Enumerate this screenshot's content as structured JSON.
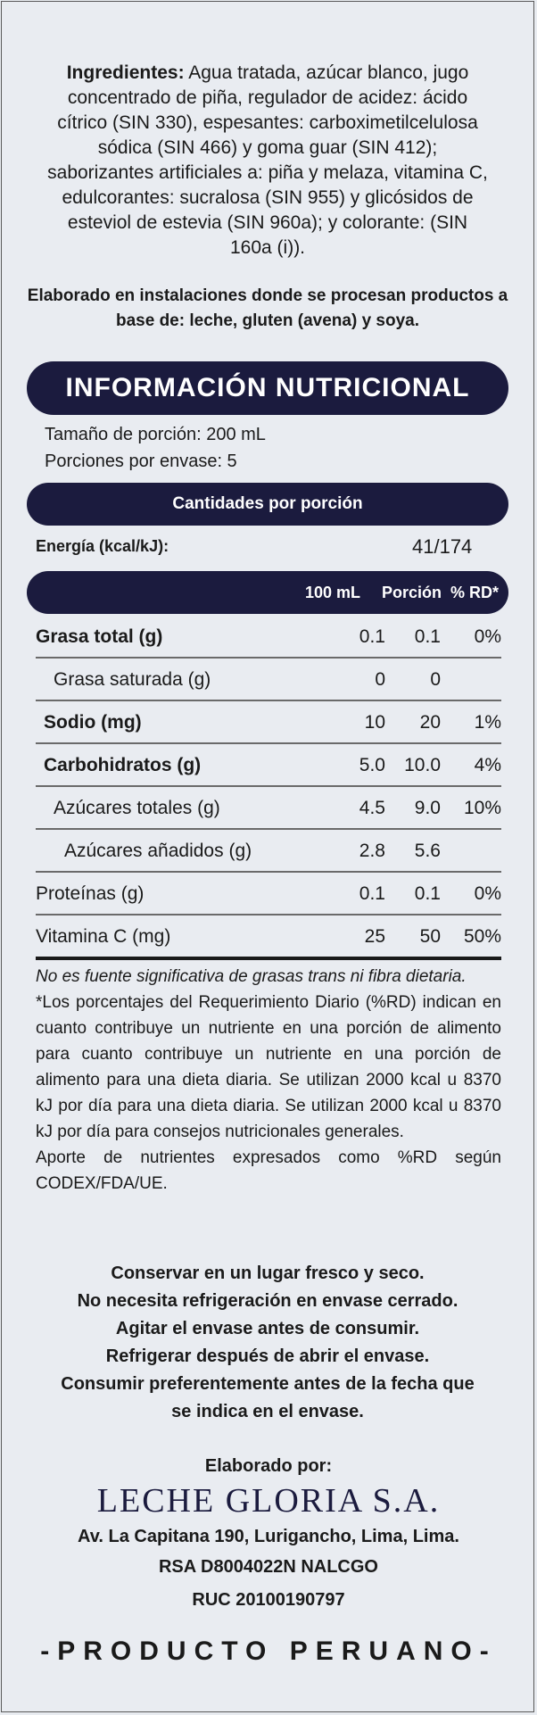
{
  "ingredients": {
    "label": "Ingredientes:",
    "text": " Agua tratada, azúcar blanco, jugo concentrado de piña, regulador de acidez: ácido cítrico (SIN 330), espesantes: carboximetilcelulosa sódica (SIN 466) y goma guar (SIN 412); saborizantes artificiales a: piña y melaza, vitamina C, edulcorantes: sucralosa (SIN 955) y glicósidos de esteviol de estevia (SIN 960a); y colorante: (SIN 160a (i))."
  },
  "allergen": "Elaborado en instalaciones donde se procesan productos a base de: leche, gluten (avena) y soya.",
  "nutrition": {
    "title": "INFORMACIÓN NUTRICIONAL",
    "serving_size": "Tamaño de porción: 200 mL",
    "servings_per_container": "Porciones por envase: 5",
    "amounts_header": "Cantidades por porción",
    "energy_label": "Energía (kcal/kJ):",
    "energy_value": "41/174",
    "col_100ml": "100 mL",
    "col_portion": "Porción",
    "col_rd": "% RD*",
    "rows": [
      {
        "label": "Grasa total (g)",
        "v100": "0.1",
        "portion": "0.1",
        "rd": "0%"
      },
      {
        "label": "Grasa saturada (g)",
        "v100": "0",
        "portion": "0",
        "rd": ""
      },
      {
        "label": "Sodio (mg)",
        "v100": "10",
        "portion": "20",
        "rd": "1%"
      },
      {
        "label": "Carbohidratos (g)",
        "v100": "5.0",
        "portion": "10.0",
        "rd": "4%"
      },
      {
        "label": "Azúcares totales (g)",
        "v100": "4.5",
        "portion": "9.0",
        "rd": "10%"
      },
      {
        "label": "Azúcares añadidos (g)",
        "v100": "2.8",
        "portion": "5.6",
        "rd": ""
      },
      {
        "label": "Proteínas (g)",
        "v100": "0.1",
        "portion": "0.1",
        "rd": "0%"
      },
      {
        "label": "Vitamina C (mg)",
        "v100": "25",
        "portion": "50",
        "rd": "50%"
      }
    ]
  },
  "notes": {
    "trans": "No es fuente significativa de grasas trans ni fibra dietaria.",
    "rd_explanation": "*Los porcentajes del Requerimiento Diario (%RD) indican en cuanto contribuye un nutriente en una porción de alimento para cuanto contribuye un nutriente en una porción de alimento para una dieta diaria. Se utilizan 2000 kcal u 8370 kJ por día para una dieta diaria. Se utilizan 2000 kcal u 8370 kJ por día para consejos nutricionales generales.",
    "source": "Aporte de nutrientes expresados como %RD según CODEX/FDA/UE."
  },
  "storage": [
    "Conservar en un lugar fresco y seco.",
    "No necesita refrigeración en envase cerrado.",
    "Agitar el envase antes de consumir.",
    "Refrigerar después de abrir el envase.",
    "Consumir preferentemente antes de la fecha que",
    "se indica en el envase."
  ],
  "manufacturer": {
    "made_by": "Elaborado por:",
    "company": "LECHE GLORIA S.A.",
    "address": "Av. La Capitana 190, Lurigancho, Lima, Lima.",
    "rsa": "RSA D8004022N NALCGO",
    "ruc": "RUC 20100190797"
  },
  "origin": "-PRODUCTO PERUANO-",
  "colors": {
    "background": "#e9ecf1",
    "band": "#1b1b3e",
    "text": "#1a1a1a"
  }
}
